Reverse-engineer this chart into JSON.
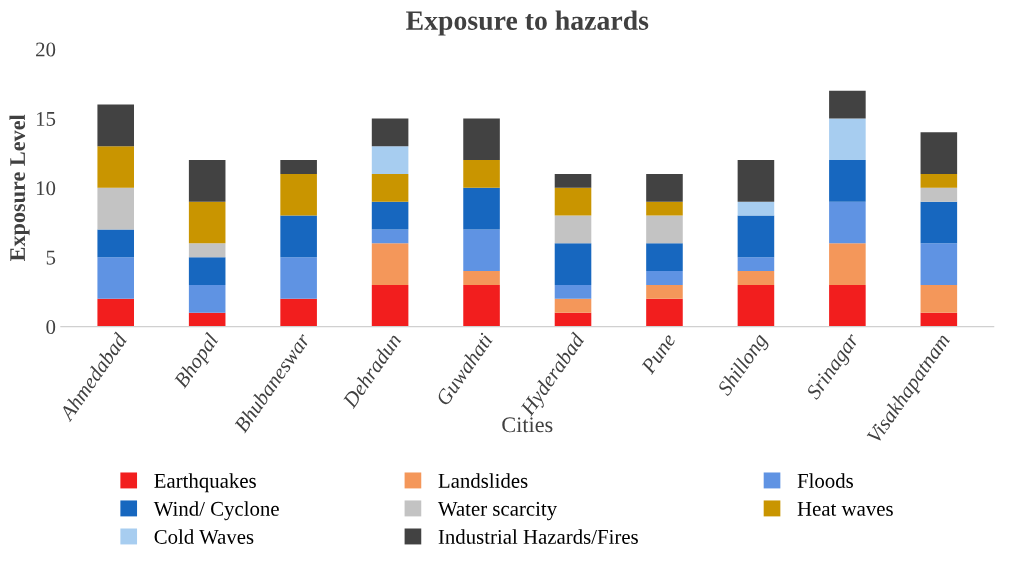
{
  "chart_data": {
    "type": "bar",
    "stacked": true,
    "title": "Exposure to hazards",
    "xlabel": "Cities",
    "ylabel": "Exposure Level",
    "categories": [
      "Ahmedabad",
      "Bhopal",
      "Bhubaneswar",
      "Dehradun",
      "Guwahati",
      "Hyderabad",
      "Pune",
      "Shillong",
      "Srinagar",
      "Visakhapatnam"
    ],
    "series": [
      {
        "name": "Earthquakes",
        "color": "#f21e1e",
        "values": [
          2,
          1,
          2,
          3,
          3,
          1,
          2,
          3,
          3,
          1
        ]
      },
      {
        "name": "Landslides",
        "color": "#f4975a",
        "values": [
          0,
          0,
          0,
          3,
          1,
          1,
          1,
          1,
          3,
          2
        ]
      },
      {
        "name": "Floods",
        "color": "#5f93e3",
        "values": [
          3,
          2,
          3,
          1,
          3,
          1,
          1,
          1,
          3,
          3
        ]
      },
      {
        "name": "Wind/ Cyclone",
        "color": "#1767bf",
        "values": [
          2,
          2,
          3,
          2,
          3,
          3,
          2,
          3,
          3,
          3
        ]
      },
      {
        "name": "Water scarcity",
        "color": "#c3c3c3",
        "values": [
          3,
          1,
          0,
          0,
          0,
          2,
          2,
          0,
          0,
          1
        ]
      },
      {
        "name": "Heat waves",
        "color": "#c99500",
        "values": [
          3,
          3,
          3,
          2,
          2,
          2,
          1,
          0,
          0,
          1
        ]
      },
      {
        "name": "Cold Waves",
        "color": "#a7cdf0",
        "values": [
          0,
          0,
          0,
          2,
          0,
          0,
          0,
          1,
          3,
          0
        ]
      },
      {
        "name": "Industrial Hazards/Fires",
        "color": "#424242",
        "values": [
          3,
          3,
          1,
          2,
          3,
          1,
          2,
          3,
          2,
          3
        ]
      }
    ],
    "ylim": [
      0,
      20
    ],
    "yticks": [
      0,
      5,
      10,
      15,
      20
    ],
    "grid": false,
    "legend": "bottom"
  }
}
